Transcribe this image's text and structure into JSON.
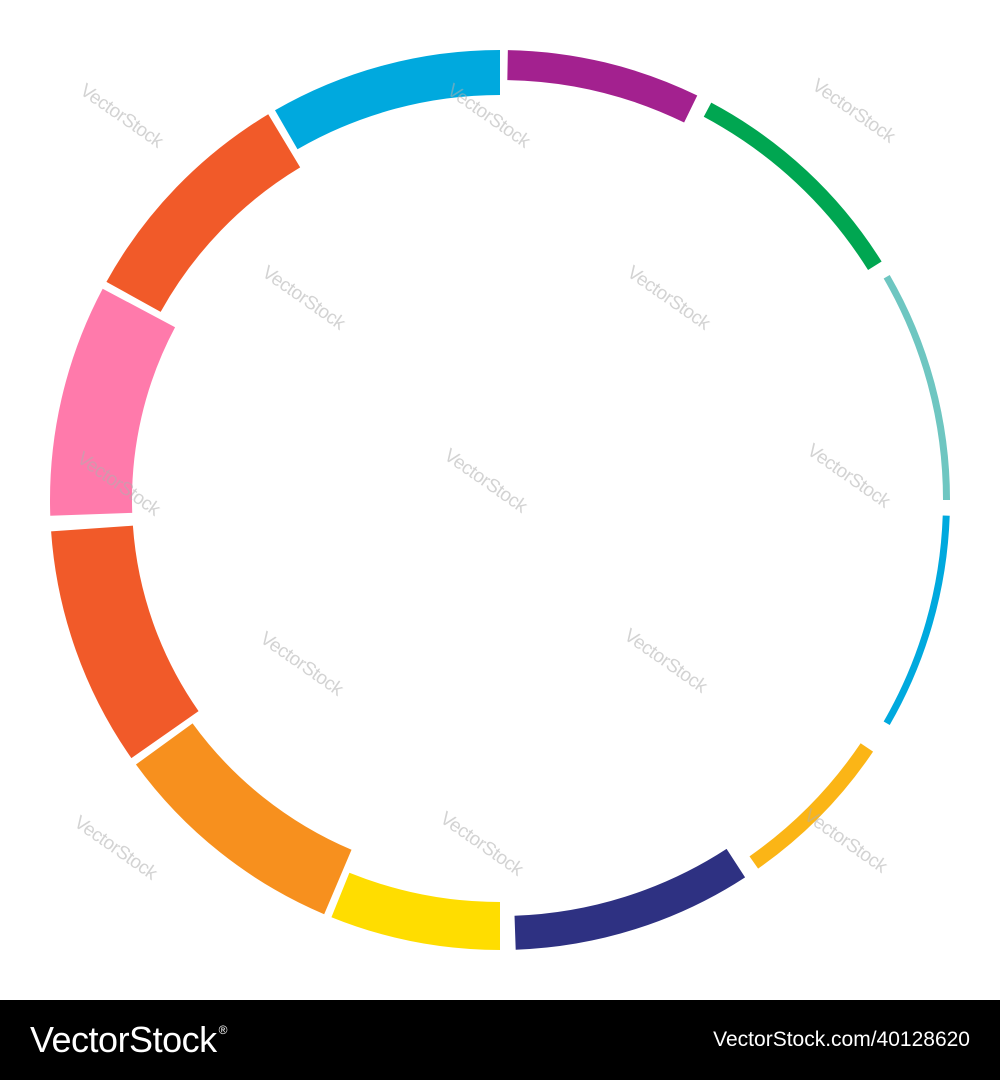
{
  "watermark_text": "VectorStock",
  "footer": {
    "brand": "VectorStock",
    "registered_mark": "®",
    "url": "VectorStock.com/40128620"
  },
  "ring": {
    "segments": [
      {
        "name": "cyan",
        "color": "#00a9de",
        "start": 0,
        "end": 30,
        "thickness": 45
      },
      {
        "name": "orange-red",
        "color": "#f15a29",
        "start": 31,
        "end": 61,
        "thickness": 62
      },
      {
        "name": "pink",
        "color": "#ff7aab",
        "start": 62,
        "end": 92,
        "thickness": 82
      },
      {
        "name": "orange-red-2",
        "color": "#f15a29",
        "start": 94,
        "end": 125,
        "thickness": 82
      },
      {
        "name": "orange",
        "color": "#f7901e",
        "start": 126,
        "end": 157,
        "thickness": 70
      },
      {
        "name": "yellow",
        "color": "#ffdd00",
        "start": 158,
        "end": 180,
        "thickness": 48
      },
      {
        "name": "navy",
        "color": "#2e3182",
        "start": 182,
        "end": 213,
        "thickness": 34
      },
      {
        "name": "amber",
        "color": "#fbb516",
        "start": 215,
        "end": 236,
        "thickness": 15
      },
      {
        "name": "blue",
        "color": "#00a9de",
        "start": 240,
        "end": 268,
        "thickness": 7
      },
      {
        "name": "teal",
        "color": "#6ec6c1",
        "start": 270,
        "end": 300,
        "thickness": 7
      },
      {
        "name": "green",
        "color": "#00a651",
        "start": 302,
        "end": 332,
        "thickness": 16
      },
      {
        "name": "purple",
        "color": "#a3218f",
        "start": 334,
        "end": 359,
        "thickness": 30
      }
    ]
  }
}
